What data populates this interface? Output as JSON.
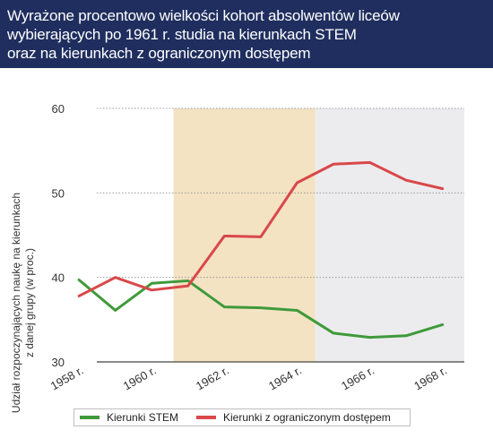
{
  "header": {
    "title_lines": [
      "Wyrażone procentowo wielkości kohort absolwentów liceów",
      "wybierających po 1961 r. studia na kierunkach STEM",
      "oraz na kierunkach z ograniczonym dostępem"
    ]
  },
  "colors": {
    "header_bg": "#1f2e5e",
    "stem": "#3f9a3a",
    "restricted": "#d9484a",
    "band_1961_1964": "#f3e3c3",
    "band_1965_1968": "#ececef"
  },
  "chart_data": {
    "type": "line",
    "title": "Wyrażone procentowo wielkości kohort absolwentów liceów wybierających po 1961 r. studia na kierunkach STEM oraz na kierunkach z ograniczonym dostępem",
    "ylabel": "Udział rozpoczynających naukę na kierunkach z danej grupy (w proc.)",
    "xlabel": "",
    "ylim": [
      30,
      60
    ],
    "yticks": [
      30,
      40,
      50,
      60
    ],
    "x": [
      1958,
      1959,
      1960,
      1961,
      1962,
      1963,
      1964,
      1965,
      1966,
      1967,
      1968
    ],
    "xtick_values": [
      1958,
      1960,
      1962,
      1964,
      1966,
      1968
    ],
    "xtick_labels": [
      "1958 r.",
      "1960 r.",
      "1962 r.",
      "1964 r.",
      "1966 r.",
      "1968 r."
    ],
    "bands": [
      {
        "from": 1960.6,
        "to": 1964.5,
        "color": "#f3e3c3"
      },
      {
        "from": 1964.5,
        "to": 1968.6,
        "color": "#ececef"
      }
    ],
    "series": [
      {
        "name": "Kierunki STEM",
        "color": "#3f9a3a",
        "values": [
          39.7,
          36.1,
          39.3,
          39.6,
          36.5,
          36.4,
          36.1,
          33.4,
          32.9,
          33.1,
          34.4
        ]
      },
      {
        "name": "Kierunki z ograniczonym dostępem",
        "color": "#d9484a",
        "values": [
          37.8,
          40.0,
          38.5,
          39.0,
          44.9,
          44.8,
          51.2,
          53.4,
          53.6,
          51.5,
          50.5
        ]
      }
    ],
    "grid": true,
    "legend": "bottom"
  }
}
